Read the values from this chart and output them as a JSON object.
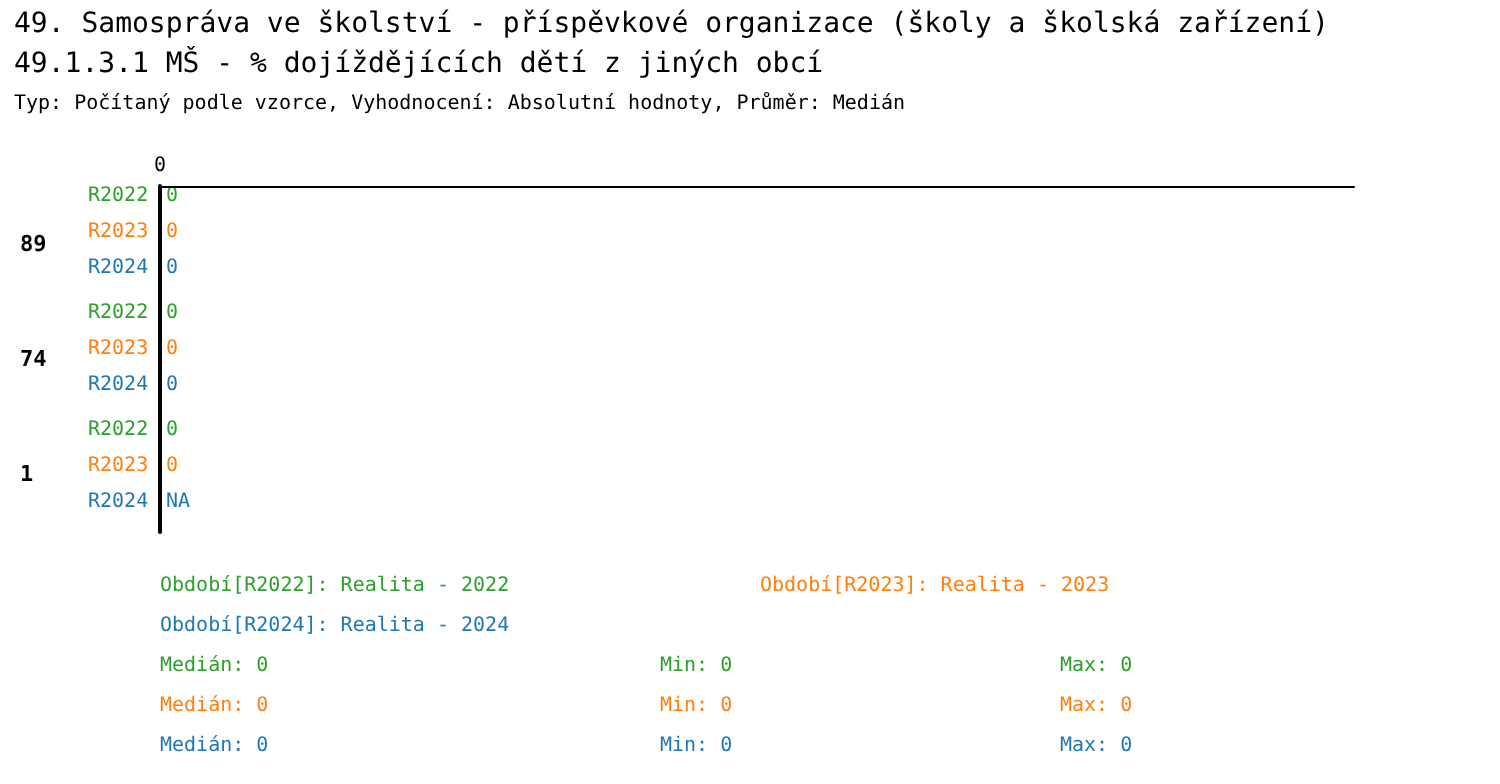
{
  "chart_data": {
    "type": "other",
    "data_labels": true,
    "title": "49. Samospráva ve školství - příspěvkové organizace (školy a školská zařízení)\n49.1.3.1 MŠ - % dojíždějících dětí z jiných obcí",
    "subtitle": "Typ: Počítaný podle vzorce, Vyhodnocení: Absolutní hodnoty, Průměr: Medián",
    "categories": [
      "89",
      "74",
      "1"
    ],
    "series": [
      {
        "name": "R2022",
        "color": "#2ca02c",
        "values": [
          0,
          0,
          0
        ]
      },
      {
        "name": "R2023",
        "color": "#ff7f0e",
        "values": [
          0,
          0,
          0
        ]
      },
      {
        "name": "R2024",
        "color": "#1f77b4",
        "values": [
          0,
          0,
          null
        ],
        "value_labels": [
          "0",
          "0",
          "NA"
        ]
      }
    ],
    "annotations": [
      "0",
      "Období[R2022]: Realita - 2022",
      "Období[R2023]: Realita - 2023",
      "Období[R2024]: Realita - 2024",
      "Medián: 0",
      "Min: 0",
      "Max: 0",
      "Medián: 0",
      "Min: 0",
      "Max: 0",
      "Medián: 0",
      "Min: 0",
      "Max: 0"
    ]
  }
}
